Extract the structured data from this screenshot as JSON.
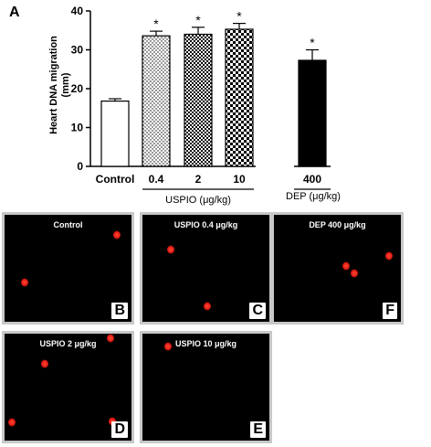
{
  "figure": {
    "panel_label": "A"
  },
  "chart_data": {
    "type": "bar",
    "ylabel_lines": [
      "Heart DNA migration",
      "(mm)"
    ],
    "ylim": [
      0,
      40
    ],
    "yticks": [
      0,
      10,
      20,
      30,
      40
    ],
    "categories": [
      "Control",
      "0.4",
      "2",
      "10",
      "400"
    ],
    "values": [
      16.8,
      33.6,
      34.0,
      35.3,
      27.3
    ],
    "errors": [
      0.6,
      1.2,
      1.8,
      1.5,
      2.7
    ],
    "significance": [
      "",
      "*",
      "*",
      "*",
      "*"
    ],
    "groups": [
      {
        "label": "USPIO (μg/kg)",
        "members": [
          "0.4",
          "2",
          "10"
        ]
      },
      {
        "label": "DEP (μg/kg)",
        "members": [
          "400"
        ]
      }
    ]
  },
  "micrographs": [
    {
      "letter": "B",
      "title": "Control"
    },
    {
      "letter": "C",
      "title": "USPIO 0.4 μg/kg"
    },
    {
      "letter": "F",
      "title": "DEP 400 μg/kg"
    },
    {
      "letter": "D",
      "title": "USPIO 2 μg/kg"
    },
    {
      "letter": "E",
      "title": "USPIO 10 μg/kg"
    }
  ]
}
